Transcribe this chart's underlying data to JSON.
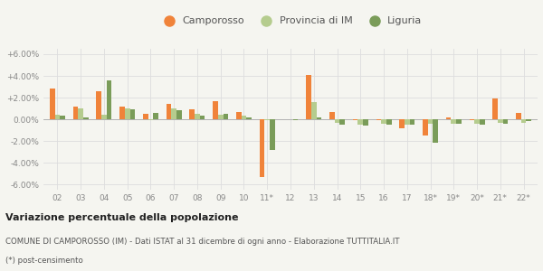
{
  "years": [
    "02",
    "03",
    "04",
    "05",
    "06",
    "07",
    "08",
    "09",
    "10",
    "11*",
    "12",
    "13",
    "14",
    "15",
    "16",
    "17",
    "18*",
    "19*",
    "20*",
    "21*",
    "22*"
  ],
  "camporosso": [
    2.8,
    1.2,
    2.6,
    1.2,
    0.5,
    1.4,
    0.9,
    1.7,
    0.7,
    -5.3,
    0.0,
    4.1,
    0.7,
    -0.1,
    -0.1,
    -0.8,
    -1.5,
    0.2,
    -0.1,
    1.9,
    0.6
  ],
  "provincia_im": [
    0.4,
    1.0,
    0.4,
    1.0,
    -0.1,
    1.0,
    0.5,
    0.4,
    0.3,
    -0.1,
    0.0,
    1.6,
    -0.3,
    -0.5,
    -0.4,
    -0.5,
    -0.4,
    -0.4,
    -0.4,
    -0.3,
    -0.3
  ],
  "liguria": [
    0.3,
    0.2,
    3.6,
    0.9,
    0.6,
    0.8,
    0.3,
    0.5,
    0.2,
    -2.8,
    -0.1,
    0.2,
    -0.5,
    -0.6,
    -0.5,
    -0.5,
    -2.2,
    -0.4,
    -0.5,
    -0.4,
    -0.2
  ],
  "color_camporosso": "#f0833a",
  "color_provincia": "#b5cc8e",
  "color_liguria": "#7a9c59",
  "title": "Variazione percentuale della popolazione",
  "subtitle1": "COMUNE DI CAMPOROSSO (IM) - Dati ISTAT al 31 dicembre di ogni anno - Elaborazione TUTTITALIA.IT",
  "subtitle2": "(*) post-censimento",
  "ylim_min": -6.5,
  "ylim_max": 6.5,
  "yticks": [
    -6.0,
    -4.0,
    -2.0,
    0.0,
    2.0,
    4.0,
    6.0
  ],
  "ytick_labels": [
    "-6.00%",
    "-4.00%",
    "-2.00%",
    "0.00%",
    "+2.00%",
    "+4.00%",
    "+6.00%"
  ],
  "bg_color": "#f5f5f0",
  "grid_color": "#dddddd"
}
